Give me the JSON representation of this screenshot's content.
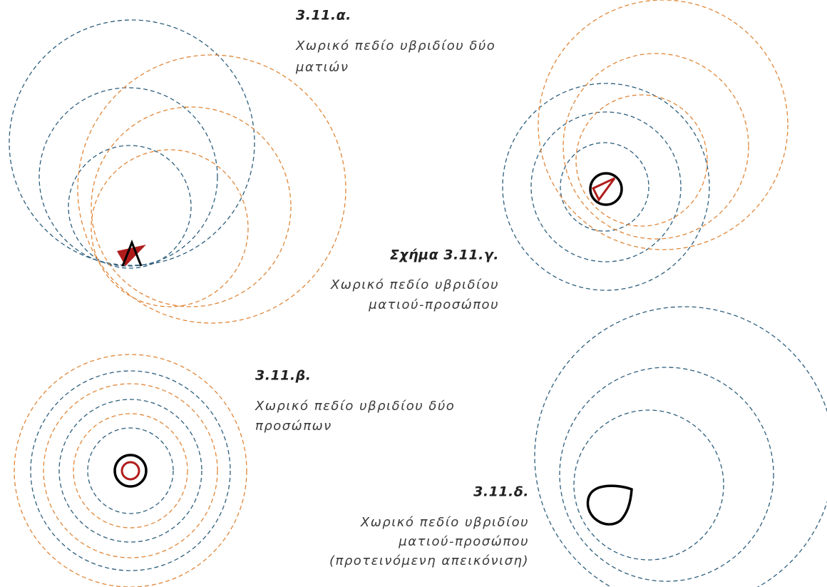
{
  "panels": [
    {
      "title": "3.11.α.",
      "caption": [
        "Χωρικό πεδίο υβριδίου δύο",
        "ματιών"
      ]
    },
    {
      "title": "Σχήμα 3.11.γ.",
      "caption": [
        "Χωρικό πεδίο υβριδίου",
        "ματιού-προσώπου"
      ]
    },
    {
      "title": "3.11.β.",
      "caption": [
        "Χωρικό πεδίο υβριδίου δύο",
        "προσώπων"
      ]
    },
    {
      "title": "3.11.δ.",
      "caption": [
        "Χωρικό πεδίο υβριδίου",
        "ματιού-προσώπου",
        "(προτεινόμενη απεικόνιση)"
      ]
    }
  ]
}
